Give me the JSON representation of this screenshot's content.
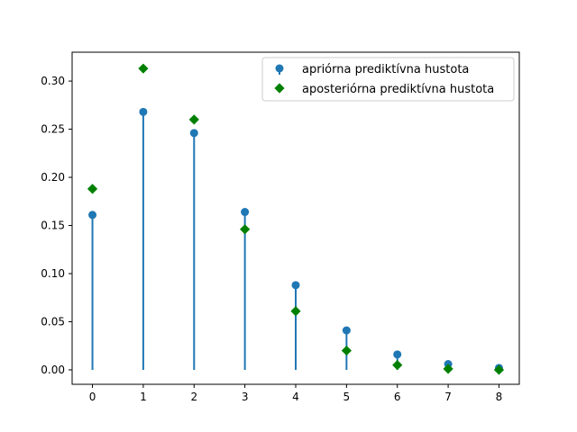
{
  "chart_data": {
    "type": "scatter",
    "style": "stem plot with point markers",
    "title": "",
    "xlabel": "",
    "ylabel": "",
    "xlim": [
      -0.4,
      8.4
    ],
    "ylim": [
      -0.015,
      0.33
    ],
    "grid": false,
    "legend_position": "top-right",
    "x": [
      0,
      1,
      2,
      3,
      4,
      5,
      6,
      7,
      8
    ],
    "x_ticks": [
      0,
      1,
      2,
      3,
      4,
      5,
      6,
      7,
      8
    ],
    "y_ticks": [
      0.0,
      0.05,
      0.1,
      0.15,
      0.2,
      0.25,
      0.3
    ],
    "y_tick_labels": [
      "0.00",
      "0.05",
      "0.10",
      "0.15",
      "0.20",
      "0.25",
      "0.30"
    ],
    "series": [
      {
        "name": "apriórna prediktívna hustota",
        "marker": "circle",
        "stem": true,
        "color": "#1f77b4",
        "values": [
          0.161,
          0.268,
          0.246,
          0.164,
          0.088,
          0.041,
          0.016,
          0.006,
          0.002
        ]
      },
      {
        "name": "aposteriórna prediktívna hustota",
        "marker": "diamond",
        "stem": false,
        "color": "#008000",
        "values": [
          0.188,
          0.313,
          0.26,
          0.146,
          0.061,
          0.02,
          0.005,
          0.001,
          0.0
        ]
      }
    ]
  }
}
